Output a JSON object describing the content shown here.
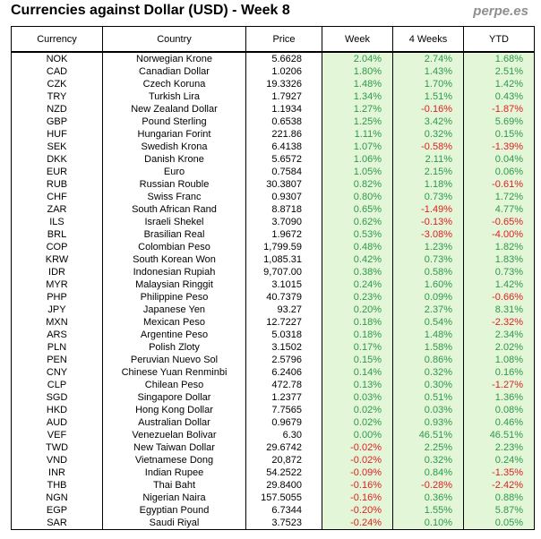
{
  "header": {
    "title": "Currencies against Dollar (USD) - Week 8",
    "brand": "perpe.es"
  },
  "columns": {
    "currency": "Currency",
    "country": "Country",
    "price": "Price",
    "week": "Week",
    "four_weeks": "4 Weeks",
    "ytd": "YTD"
  },
  "rows": [
    {
      "code": "NOK",
      "name": "Norwegian Krone",
      "price": "5.6628",
      "week": "2.04%",
      "four_weeks": "2.74%",
      "ytd": "1.68%"
    },
    {
      "code": "CAD",
      "name": "Canadian Dollar",
      "price": "1.0206",
      "week": "1.80%",
      "four_weeks": "1.43%",
      "ytd": "2.51%"
    },
    {
      "code": "CZK",
      "name": "Czech Koruna",
      "price": "19.3326",
      "week": "1.48%",
      "four_weeks": "1.70%",
      "ytd": "1.42%"
    },
    {
      "code": "TRY",
      "name": "Turkish Lira",
      "price": "1.7927",
      "week": "1.34%",
      "four_weeks": "1.51%",
      "ytd": "0.43%"
    },
    {
      "code": "NZD",
      "name": "New Zealand Dollar",
      "price": "1.1934",
      "week": "1.27%",
      "four_weeks": "-0.16%",
      "ytd": "-1.87%"
    },
    {
      "code": "GBP",
      "name": "Pound Sterling",
      "price": "0.6538",
      "week": "1.25%",
      "four_weeks": "3.42%",
      "ytd": "5.69%"
    },
    {
      "code": "HUF",
      "name": "Hungarian Forint",
      "price": "221.86",
      "week": "1.11%",
      "four_weeks": "0.32%",
      "ytd": "0.15%"
    },
    {
      "code": "SEK",
      "name": "Swedish Krona",
      "price": "6.4138",
      "week": "1.07%",
      "four_weeks": "-0.58%",
      "ytd": "-1.39%"
    },
    {
      "code": "DKK",
      "name": "Danish Krone",
      "price": "5.6572",
      "week": "1.06%",
      "four_weeks": "2.11%",
      "ytd": "0.04%"
    },
    {
      "code": "EUR",
      "name": "Euro",
      "price": "0.7584",
      "week": "1.05%",
      "four_weeks": "2.15%",
      "ytd": "0.06%"
    },
    {
      "code": "RUB",
      "name": "Russian Rouble",
      "price": "30.3807",
      "week": "0.82%",
      "four_weeks": "1.18%",
      "ytd": "-0.61%"
    },
    {
      "code": "CHF",
      "name": "Swiss Franc",
      "price": "0.9307",
      "week": "0.80%",
      "four_weeks": "0.73%",
      "ytd": "1.72%"
    },
    {
      "code": "ZAR",
      "name": "South African Rand",
      "price": "8.8718",
      "week": "0.65%",
      "four_weeks": "-1.49%",
      "ytd": "4.77%"
    },
    {
      "code": "ILS",
      "name": "Israeli Shekel",
      "price": "3.7090",
      "week": "0.62%",
      "four_weeks": "-0.13%",
      "ytd": "-0.65%"
    },
    {
      "code": "BRL",
      "name": "Brasilian Real",
      "price": "1.9672",
      "week": "0.53%",
      "four_weeks": "-3.08%",
      "ytd": "-4.00%"
    },
    {
      "code": "COP",
      "name": "Colombian Peso",
      "price": "1,799.59",
      "week": "0.48%",
      "four_weeks": "1.23%",
      "ytd": "1.82%"
    },
    {
      "code": "KRW",
      "name": "South Korean Won",
      "price": "1,085.31",
      "week": "0.42%",
      "four_weeks": "0.73%",
      "ytd": "1.83%"
    },
    {
      "code": "IDR",
      "name": "Indonesian Rupiah",
      "price": "9,707.00",
      "week": "0.38%",
      "four_weeks": "0.58%",
      "ytd": "0.73%"
    },
    {
      "code": "MYR",
      "name": "Malaysian Ringgit",
      "price": "3.1015",
      "week": "0.24%",
      "four_weeks": "1.60%",
      "ytd": "1.42%"
    },
    {
      "code": "PHP",
      "name": "Philippine Peso",
      "price": "40.7379",
      "week": "0.23%",
      "four_weeks": "0.09%",
      "ytd": "-0.66%"
    },
    {
      "code": "JPY",
      "name": "Japanese Yen",
      "price": "93.27",
      "week": "0.20%",
      "four_weeks": "2.37%",
      "ytd": "8.31%"
    },
    {
      "code": "MXN",
      "name": "Mexican Peso",
      "price": "12.7227",
      "week": "0.18%",
      "four_weeks": "0.54%",
      "ytd": "-2.32%"
    },
    {
      "code": "ARS",
      "name": "Argentine Peso",
      "price": "5.0318",
      "week": "0.18%",
      "four_weeks": "1.48%",
      "ytd": "2.34%"
    },
    {
      "code": "PLN",
      "name": "Polish Zloty",
      "price": "3.1502",
      "week": "0.17%",
      "four_weeks": "1.58%",
      "ytd": "2.02%"
    },
    {
      "code": "PEN",
      "name": "Peruvian Nuevo Sol",
      "price": "2.5796",
      "week": "0.15%",
      "four_weeks": "0.86%",
      "ytd": "1.08%"
    },
    {
      "code": "CNY",
      "name": "Chinese Yuan Renminbi",
      "price": "6.2406",
      "week": "0.14%",
      "four_weeks": "0.32%",
      "ytd": "0.16%"
    },
    {
      "code": "CLP",
      "name": "Chilean Peso",
      "price": "472.78",
      "week": "0.13%",
      "four_weeks": "0.30%",
      "ytd": "-1.27%"
    },
    {
      "code": "SGD",
      "name": "Singapore Dollar",
      "price": "1.2377",
      "week": "0.03%",
      "four_weeks": "0.51%",
      "ytd": "1.36%"
    },
    {
      "code": "HKD",
      "name": "Hong Kong Dollar",
      "price": "7.7565",
      "week": "0.02%",
      "four_weeks": "0.03%",
      "ytd": "0.08%"
    },
    {
      "code": "AUD",
      "name": "Australian Dollar",
      "price": "0.9679",
      "week": "0.02%",
      "four_weeks": "0.93%",
      "ytd": "0.46%"
    },
    {
      "code": "VEF",
      "name": "Venezuelan Bolivar",
      "price": "6.30",
      "week": "0.00%",
      "four_weeks": "46.51%",
      "ytd": "46.51%"
    },
    {
      "code": "TWD",
      "name": "New Taiwan Dollar",
      "price": "29.6742",
      "week": "-0.02%",
      "four_weeks": "2.25%",
      "ytd": "2.23%"
    },
    {
      "code": "VND",
      "name": "Vietnamese Dong",
      "price": "20,872",
      "week": "-0.02%",
      "four_weeks": "0.32%",
      "ytd": "0.24%"
    },
    {
      "code": "INR",
      "name": "Indian Rupee",
      "price": "54.2522",
      "week": "-0.09%",
      "four_weeks": "0.84%",
      "ytd": "-1.35%"
    },
    {
      "code": "THB",
      "name": "Thai Baht",
      "price": "29.8400",
      "week": "-0.16%",
      "four_weeks": "-0.28%",
      "ytd": "-2.42%"
    },
    {
      "code": "NGN",
      "name": "Nigerian Naira",
      "price": "157.5055",
      "week": "-0.16%",
      "four_weeks": "0.36%",
      "ytd": "0.88%"
    },
    {
      "code": "EGP",
      "name": "Egyptian Pound",
      "price": "6.7344",
      "week": "-0.20%",
      "four_weeks": "1.55%",
      "ytd": "5.87%"
    },
    {
      "code": "SAR",
      "name": "Saudi Riyal",
      "price": "3.7523",
      "week": "-0.24%",
      "four_weeks": "0.10%",
      "ytd": "0.05%"
    }
  ],
  "colors": {
    "positive": "#2c9a4b",
    "negative": "#e02020",
    "pct_background": "#e3f6d8",
    "brand": "#8f8f8f"
  }
}
